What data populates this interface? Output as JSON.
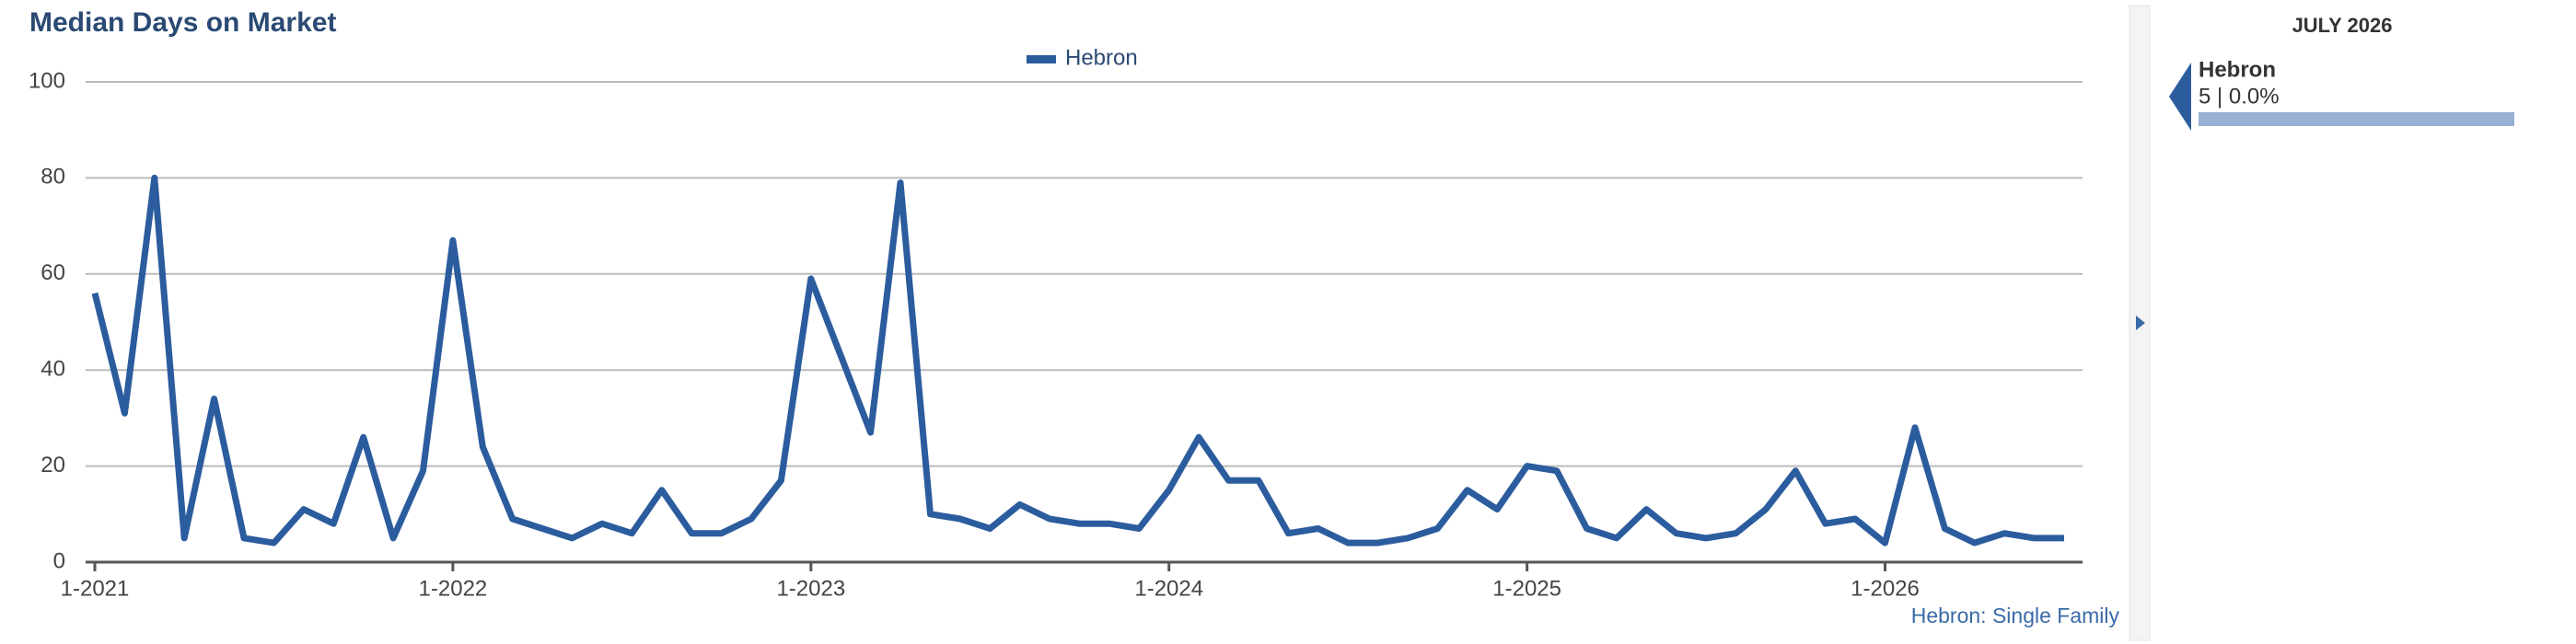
{
  "chart_data": {
    "type": "line",
    "title": "Median Days on Market",
    "categories": [
      "1-2021",
      null,
      null,
      null,
      null,
      null,
      null,
      null,
      null,
      null,
      null,
      null,
      "1-2022",
      null,
      null,
      null,
      null,
      null,
      null,
      null,
      null,
      null,
      null,
      null,
      "1-2023",
      null,
      null,
      null,
      null,
      null,
      null,
      null,
      null,
      null,
      null,
      null,
      "1-2024",
      null,
      null,
      null,
      null,
      null,
      null,
      null,
      null,
      null,
      null,
      null,
      "1-2025",
      null,
      null,
      null,
      null,
      null,
      null,
      null,
      null,
      null,
      null,
      null,
      "1-2026",
      null,
      null,
      null,
      null,
      null,
      null
    ],
    "series": [
      {
        "name": "Hebron",
        "color": "#2b5c9e",
        "values": [
          56,
          31,
          80,
          5,
          34,
          5,
          4,
          11,
          8,
          26,
          5,
          19,
          67,
          24,
          9,
          7,
          5,
          8,
          6,
          15,
          6,
          6,
          9,
          17,
          59,
          43,
          27,
          79,
          10,
          9,
          7,
          12,
          9,
          8,
          8,
          7,
          15,
          26,
          17,
          17,
          6,
          7,
          4,
          4,
          5,
          7,
          15,
          11,
          20,
          19,
          7,
          5,
          11,
          6,
          5,
          6,
          11,
          19,
          8,
          9,
          4,
          28,
          7,
          4,
          6,
          5,
          5
        ]
      }
    ],
    "ylim": [
      0,
      100
    ],
    "yticks": [
      0,
      20,
      40,
      60,
      80,
      100
    ],
    "grid": true,
    "legend": "top",
    "source": "Hebron: Single Family"
  },
  "side_panel": {
    "title": "JULY 2026",
    "entries": [
      {
        "name": "Hebron",
        "detail": "5 | 0.0%"
      }
    ]
  }
}
